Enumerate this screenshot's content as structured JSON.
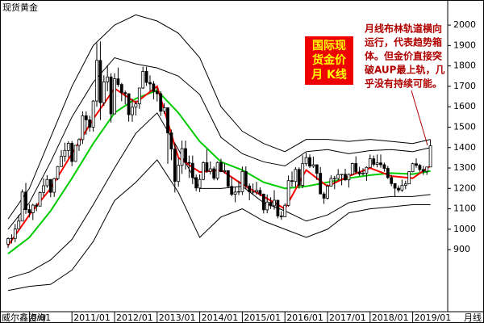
{
  "chart_data": {
    "type": "candlestick",
    "title": "现货黄金",
    "source": "威尔鑫咨询",
    "period": "月线",
    "badge": [
      "国际现",
      "货金价",
      "月  K线"
    ],
    "annotation": [
      "月线布林轨道横向",
      "运行，代表趋势箱",
      "体。但金价直接突",
      "破AUP最上轨，几",
      "乎没有持续可能。"
    ],
    "categories": [
      "2009/07",
      "2009/08",
      "2009/09",
      "2009/10",
      "2009/11",
      "2009/12",
      "2010/01",
      "2010/02",
      "2010/03",
      "2010/04",
      "2010/05",
      "2010/06",
      "2010/07",
      "2010/08",
      "2010/09",
      "2010/10",
      "2010/11",
      "2010/12",
      "2011/01",
      "2011/02",
      "2011/03",
      "2011/04",
      "2011/05",
      "2011/06",
      "2011/07",
      "2011/08",
      "2011/09",
      "2011/10",
      "2011/11",
      "2011/12",
      "2012/01",
      "2012/02",
      "2012/03",
      "2012/04",
      "2012/05",
      "2012/06",
      "2012/07",
      "2012/08",
      "2012/09",
      "2012/10",
      "2012/11",
      "2012/12",
      "2013/01",
      "2013/02",
      "2013/03",
      "2013/04",
      "2013/05",
      "2013/06",
      "2013/07",
      "2013/08",
      "2013/09",
      "2013/10",
      "2013/11",
      "2013/12",
      "2014/01",
      "2014/02",
      "2014/03",
      "2014/04",
      "2014/05",
      "2014/06",
      "2014/07",
      "2014/08",
      "2014/09",
      "2014/10",
      "2014/11",
      "2014/12",
      "2015/01",
      "2015/02",
      "2015/03",
      "2015/04",
      "2015/05",
      "2015/06",
      "2015/07",
      "2015/08",
      "2015/09",
      "2015/10",
      "2015/11",
      "2015/12",
      "2016/01",
      "2016/02",
      "2016/03",
      "2016/04",
      "2016/05",
      "2016/06",
      "2016/07",
      "2016/08",
      "2016/09",
      "2016/10",
      "2016/11",
      "2016/12",
      "2017/01",
      "2017/02",
      "2017/03",
      "2017/04",
      "2017/05",
      "2017/06",
      "2017/07",
      "2017/08",
      "2017/09",
      "2017/10",
      "2017/11",
      "2017/12",
      "2018/01",
      "2018/02",
      "2018/03",
      "2018/04",
      "2018/05",
      "2018/06",
      "2018/07",
      "2018/08",
      "2018/09",
      "2018/10",
      "2018/11",
      "2018/12",
      "2019/01",
      "2019/02",
      "2019/03",
      "2019/04",
      "2019/05",
      "2019/06"
    ],
    "open": [
      927,
      954,
      955,
      1001,
      1040,
      1182,
      1096,
      1081,
      1118,
      1113,
      1180,
      1213,
      1244,
      1181,
      1248,
      1307,
      1357,
      1386,
      1421,
      1332,
      1411,
      1439,
      1556,
      1536,
      1500,
      1628,
      1827,
      1620,
      1722,
      1746,
      1565,
      1737,
      1709,
      1669,
      1664,
      1561,
      1598,
      1614,
      1692,
      1773,
      1719,
      1712,
      1675,
      1664,
      1578,
      1595,
      1472,
      1393,
      1234,
      1313,
      1395,
      1327,
      1323,
      1253,
      1202,
      1244,
      1326,
      1284,
      1296,
      1250,
      1327,
      1282,
      1287,
      1210,
      1171,
      1182,
      1184,
      1283,
      1212,
      1183,
      1183,
      1190,
      1172,
      1095,
      1133,
      1115,
      1142,
      1065,
      1061,
      1117,
      1238,
      1234,
      1293,
      1215,
      1321,
      1351,
      1309,
      1316,
      1274,
      1173,
      1152,
      1211,
      1249,
      1249,
      1268,
      1269,
      1242,
      1269,
      1322,
      1280,
      1271,
      1275,
      1303,
      1345,
      1318,
      1325,
      1316,
      1298,
      1253,
      1224,
      1201,
      1192,
      1215,
      1222,
      1282,
      1321,
      1313,
      1292,
      1284,
      1305
    ],
    "high": [
      960,
      975,
      1025,
      1070,
      1195,
      1227,
      1123,
      1125,
      1128,
      1185,
      1249,
      1265,
      1245,
      1252,
      1310,
      1388,
      1424,
      1431,
      1432,
      1412,
      1445,
      1577,
      1577,
      1556,
      1633,
      1912,
      1920,
      1754,
      1803,
      1764,
      1764,
      1792,
      1717,
      1679,
      1665,
      1640,
      1631,
      1692,
      1796,
      1796,
      1754,
      1726,
      1694,
      1676,
      1617,
      1598,
      1488,
      1424,
      1348,
      1434,
      1434,
      1361,
      1361,
      1268,
      1269,
      1333,
      1392,
      1332,
      1307,
      1332,
      1345,
      1322,
      1288,
      1256,
      1205,
      1238,
      1307,
      1308,
      1224,
      1224,
      1232,
      1205,
      1175,
      1170,
      1157,
      1191,
      1144,
      1088,
      1127,
      1263,
      1283,
      1304,
      1303,
      1362,
      1375,
      1367,
      1356,
      1314,
      1305,
      1183,
      1220,
      1264,
      1261,
      1295,
      1270,
      1296,
      1273,
      1326,
      1357,
      1306,
      1299,
      1308,
      1366,
      1361,
      1366,
      1366,
      1326,
      1310,
      1266,
      1219,
      1214,
      1243,
      1238,
      1284,
      1326,
      1347,
      1320,
      1310,
      1305,
      1438
    ],
    "low": [
      908,
      930,
      937,
      1000,
      1040,
      1075,
      1058,
      1045,
      1088,
      1114,
      1160,
      1203,
      1157,
      1158,
      1240,
      1316,
      1330,
      1350,
      1309,
      1330,
      1383,
      1418,
      1463,
      1478,
      1478,
      1600,
      1535,
      1604,
      1676,
      1523,
      1563,
      1697,
      1627,
      1612,
      1527,
      1526,
      1557,
      1590,
      1687,
      1702,
      1675,
      1636,
      1626,
      1555,
      1565,
      1321,
      1338,
      1180,
      1208,
      1271,
      1292,
      1251,
      1221,
      1187,
      1182,
      1240,
      1277,
      1268,
      1240,
      1240,
      1280,
      1273,
      1206,
      1162,
      1132,
      1167,
      1168,
      1197,
      1142,
      1170,
      1169,
      1162,
      1077,
      1078,
      1099,
      1096,
      1053,
      1046,
      1062,
      1110,
      1208,
      1207,
      1199,
      1201,
      1310,
      1300,
      1300,
      1241,
      1171,
      1124,
      1146,
      1209,
      1196,
      1240,
      1215,
      1236,
      1204,
      1267,
      1271,
      1261,
      1264,
      1237,
      1303,
      1307,
      1303,
      1301,
      1282,
      1246,
      1211,
      1160,
      1180,
      1183,
      1196,
      1221,
      1279,
      1301,
      1281,
      1266,
      1266,
      1320
    ],
    "close": [
      954,
      955,
      1001,
      1040,
      1182,
      1096,
      1081,
      1118,
      1113,
      1180,
      1213,
      1244,
      1181,
      1248,
      1307,
      1357,
      1386,
      1421,
      1332,
      1411,
      1439,
      1556,
      1536,
      1500,
      1628,
      1827,
      1620,
      1722,
      1746,
      1565,
      1737,
      1709,
      1669,
      1664,
      1561,
      1598,
      1614,
      1692,
      1773,
      1719,
      1712,
      1675,
      1664,
      1578,
      1595,
      1472,
      1393,
      1234,
      1313,
      1395,
      1327,
      1323,
      1253,
      1202,
      1244,
      1326,
      1284,
      1296,
      1250,
      1327,
      1282,
      1287,
      1210,
      1171,
      1182,
      1184,
      1283,
      1212,
      1183,
      1183,
      1190,
      1172,
      1095,
      1133,
      1115,
      1142,
      1065,
      1061,
      1117,
      1238,
      1234,
      1293,
      1215,
      1321,
      1351,
      1309,
      1316,
      1274,
      1173,
      1152,
      1211,
      1249,
      1249,
      1268,
      1269,
      1242,
      1269,
      1322,
      1280,
      1271,
      1275,
      1303,
      1345,
      1318,
      1325,
      1316,
      1298,
      1253,
      1224,
      1201,
      1192,
      1215,
      1222,
      1282,
      1321,
      1313,
      1292,
      1284,
      1305,
      1409
    ],
    "up_color": "#ffffff",
    "down_color": "#000000",
    "lines": [
      {
        "color": "#000000",
        "x": [
          "2009/07",
          "2010/01",
          "2010/07",
          "2011/01",
          "2011/07",
          "2012/01",
          "2012/07",
          "2013/01",
          "2013/07",
          "2014/01",
          "2014/07",
          "2015/01",
          "2015/07",
          "2016/01",
          "2016/07",
          "2017/01",
          "2017/07",
          "2018/01",
          "2018/07",
          "2019/01",
          "2019/06"
        ],
        "values": [
          1050,
          1200,
          1450,
          1700,
          1900,
          2000,
          2050,
          2020,
          1960,
          1840,
          1600,
          1480,
          1420,
          1380,
          1440,
          1440,
          1430,
          1440,
          1430,
          1420,
          1440
        ]
      },
      {
        "color": "#000000",
        "x": [
          "2009/07",
          "2010/01",
          "2010/07",
          "2011/01",
          "2011/07",
          "2012/01",
          "2012/07",
          "2013/01",
          "2013/07",
          "2014/01",
          "2014/07",
          "2015/01",
          "2015/07",
          "2016/01",
          "2016/07",
          "2017/01",
          "2017/07",
          "2018/01",
          "2018/07",
          "2019/01",
          "2019/06"
        ],
        "values": [
          1000,
          1130,
          1330,
          1550,
          1720,
          1840,
          1810,
          1790,
          1750,
          1660,
          1450,
          1370,
          1330,
          1310,
          1380,
          1390,
          1370,
          1385,
          1390,
          1380,
          1400
        ]
      },
      {
        "color": "#000000",
        "x": [
          "2009/07",
          "2010/01",
          "2010/07",
          "2011/01",
          "2011/07",
          "2012/01",
          "2012/07",
          "2013/01",
          "2013/07",
          "2014/01",
          "2014/07",
          "2015/01",
          "2015/07",
          "2016/01",
          "2016/07",
          "2017/01",
          "2017/07",
          "2018/01",
          "2018/07",
          "2019/01",
          "2019/06"
        ],
        "values": [
          760,
          790,
          850,
          950,
          1120,
          1300,
          1470,
          1570,
          1390,
          1200,
          1200,
          1210,
          1130,
          1090,
          1040,
          1070,
          1130,
          1150,
          1160,
          1160,
          1170
        ]
      },
      {
        "color": "#000000",
        "x": [
          "2009/07",
          "2010/01",
          "2010/07",
          "2011/01",
          "2011/07",
          "2012/01",
          "2012/07",
          "2013/01",
          "2013/07",
          "2014/01",
          "2014/07",
          "2015/01",
          "2015/07",
          "2016/01",
          "2016/07",
          "2017/01",
          "2017/07",
          "2018/01",
          "2018/07",
          "2019/01",
          "2019/06"
        ],
        "values": [
          700,
          720,
          730,
          800,
          940,
          1140,
          1230,
          1340,
          1180,
          960,
          1060,
          1100,
          1040,
          1000,
          960,
          1000,
          1080,
          1100,
          1110,
          1120,
          1120
        ]
      },
      {
        "color": "#00cc00",
        "x": [
          "2009/07",
          "2010/01",
          "2010/07",
          "2011/01",
          "2011/07",
          "2012/01",
          "2012/07",
          "2013/01",
          "2013/07",
          "2014/01",
          "2014/07",
          "2015/01",
          "2015/07",
          "2016/01",
          "2016/07",
          "2017/01",
          "2017/07",
          "2018/01",
          "2018/07",
          "2019/01",
          "2019/06"
        ],
        "values": [
          880,
          960,
          1090,
          1250,
          1420,
          1570,
          1640,
          1680,
          1570,
          1430,
          1330,
          1290,
          1230,
          1200,
          1210,
          1230,
          1250,
          1265,
          1275,
          1270,
          1285
        ]
      },
      {
        "color": "#ff0000",
        "x": [
          "2009/07",
          "2010/01",
          "2010/07",
          "2011/01",
          "2011/07",
          "2012/01",
          "2012/07",
          "2013/01",
          "2013/07",
          "2014/01",
          "2014/07",
          "2015/01",
          "2015/07",
          "2016/01",
          "2016/07",
          "2017/01",
          "2017/07",
          "2018/01",
          "2018/07",
          "2019/01",
          "2019/06"
        ],
        "values": [
          920,
          1070,
          1200,
          1370,
          1540,
          1690,
          1620,
          1700,
          1350,
          1280,
          1290,
          1220,
          1160,
          1100,
          1290,
          1210,
          1260,
          1300,
          1260,
          1250,
          1310
        ]
      }
    ],
    "ylim": [
      600,
      2115
    ],
    "yticks": [
      900,
      1000,
      1100,
      1200,
      1300,
      1400,
      1500,
      1600,
      1700,
      1800,
      1900,
      2000
    ],
    "xticks": [
      {
        "value": "2010/01",
        "label": "0/01"
      },
      "2011/01",
      "2012/01",
      "2013/01",
      "2014/01",
      "2015/01",
      "2016/01",
      "2017/01",
      "2018/01",
      "2019/01"
    ]
  }
}
